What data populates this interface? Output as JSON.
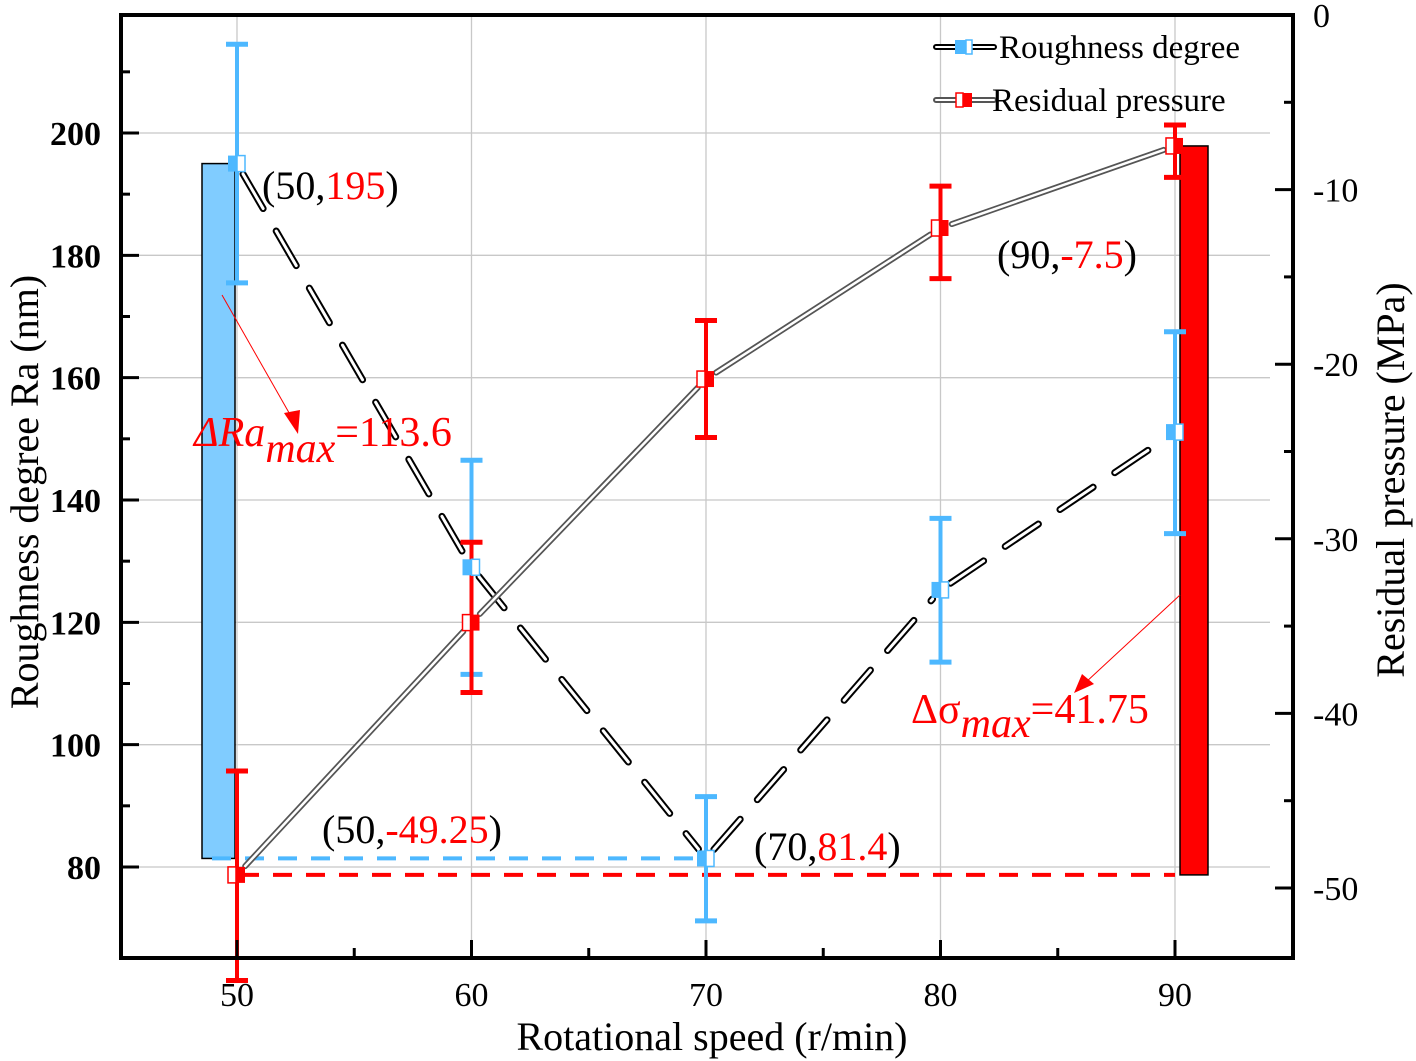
{
  "chart_data": {
    "type": "line",
    "title": "",
    "xlabel": "Rotational speed (r/min)",
    "ylabel_left": "Roughness degree Ra (nm)",
    "ylabel_right": "Residual pressure (MPa)",
    "x": [
      50,
      60,
      70,
      80,
      90
    ],
    "xlim": [
      45,
      95
    ],
    "x_ticks": [
      "50",
      "60",
      "70",
      "80",
      "90"
    ],
    "ylim_left": [
      64,
      222
    ],
    "y_ticks_left": [
      "80",
      "100",
      "120",
      "140",
      "160",
      "180",
      "200"
    ],
    "ylim_right": [
      -54.1,
      0
    ],
    "y_ticks_right": [
      "0",
      "-10",
      "-20",
      "-30",
      "-40",
      "-50"
    ],
    "grid": true,
    "legend_position": "top-right",
    "series": [
      {
        "name": "Roughness degree",
        "axis": "left",
        "color": "#4db8ff",
        "line_style": "dashed-double",
        "values": [
          195,
          129,
          81.4,
          125.3,
          151.1
        ],
        "error_upper": [
          214.5,
          146.5,
          91.5,
          137,
          167.5
        ],
        "error_lower": [
          175.5,
          111.5,
          71.2,
          113.5,
          134.5
        ]
      },
      {
        "name": "Residual pressure",
        "axis": "right",
        "color": "#ff0000",
        "line_style": "solid-double",
        "values": [
          -49.25,
          -34.8,
          -20.85,
          -12.2,
          -7.5
        ],
        "error_upper": [
          -43.3,
          -30.2,
          -17.5,
          -9.8,
          -6.3
        ],
        "error_lower": [
          -55.3,
          -38.8,
          -24.2,
          -15.1,
          -9.3
        ]
      }
    ],
    "range_bars": [
      {
        "name": "roughness-range-bar",
        "axis": "left",
        "x": 49,
        "from": 81.4,
        "to": 195,
        "color": "#80ccff"
      },
      {
        "name": "pressure-range-bar",
        "axis": "right",
        "x": 91,
        "from": -49.25,
        "to": -7.5,
        "color": "#ff0000"
      }
    ],
    "reference_lines": [
      {
        "name": "roughness-min-line",
        "axis": "left",
        "from_x": 49,
        "to_x": 70,
        "value": 81.4,
        "color": "#4db8ff"
      },
      {
        "name": "pressure-min-line",
        "axis": "right",
        "from_x": 50,
        "to_x": 90,
        "value": -49.25,
        "color": "#ff0000"
      }
    ],
    "annotations": [
      {
        "name": "label-50-195",
        "prefix": "(50,",
        "value": "195",
        "suffix": ")"
      },
      {
        "name": "label-90-7.5",
        "prefix": "(90,",
        "value": "-7.5",
        "suffix": ")"
      },
      {
        "name": "label-50-49.25",
        "prefix": "(50,",
        "value": "-49.25",
        "suffix": ")"
      },
      {
        "name": "label-70-81.4",
        "prefix": "(70,",
        "value": "81.4",
        "suffix": ")"
      }
    ],
    "delta_annotations": {
      "ra": {
        "symbol": "ΔRa",
        "sub": "max",
        "eq": "=113.6"
      },
      "sigma": {
        "symbol": "Δσ",
        "sub": "max",
        "eq": "=41.75"
      }
    }
  }
}
